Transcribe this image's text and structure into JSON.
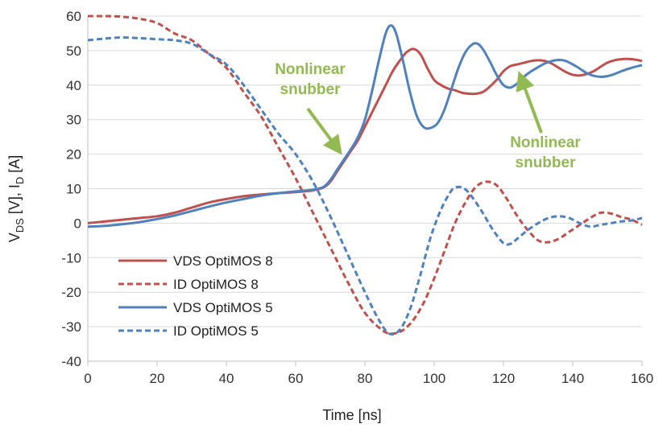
{
  "chart_data": {
    "type": "line",
    "xlabel": "Time [ns]",
    "ylabel": {
      "parts": [
        "V",
        "DS",
        " [V], I",
        "D",
        " [A]"
      ]
    },
    "xlim": [
      0,
      160
    ],
    "ylim": [
      -40,
      60
    ],
    "xticks": [
      0,
      20,
      40,
      60,
      80,
      100,
      120,
      140,
      160
    ],
    "yticks": [
      -40,
      -30,
      -20,
      -10,
      0,
      10,
      20,
      30,
      40,
      50,
      60
    ],
    "grid": "horizontal",
    "legend_position": "bottom-left",
    "colors": {
      "red": "#c0504d",
      "blue": "#4f81bd",
      "annotation": "#92b952"
    },
    "series": [
      {
        "name": "VDS OptiMOS 8",
        "color": "#c0504d",
        "dash": false,
        "points": [
          [
            0,
            0
          ],
          [
            5,
            0.5
          ],
          [
            10,
            1
          ],
          [
            15,
            1.5
          ],
          [
            20,
            2
          ],
          [
            25,
            3
          ],
          [
            30,
            4.5
          ],
          [
            35,
            6
          ],
          [
            40,
            7
          ],
          [
            45,
            7.8
          ],
          [
            50,
            8.3
          ],
          [
            55,
            8.7
          ],
          [
            60,
            9
          ],
          [
            65,
            9.5
          ],
          [
            68,
            10.3
          ],
          [
            70,
            12
          ],
          [
            72,
            15
          ],
          [
            74,
            18
          ],
          [
            76,
            21
          ],
          [
            78,
            24
          ],
          [
            80,
            28
          ],
          [
            82,
            32
          ],
          [
            84,
            36
          ],
          [
            86,
            40
          ],
          [
            88,
            44
          ],
          [
            90,
            47
          ],
          [
            92,
            49.5
          ],
          [
            94,
            50.5
          ],
          [
            96,
            49
          ],
          [
            98,
            45
          ],
          [
            100,
            41.5
          ],
          [
            102,
            40
          ],
          [
            104,
            39
          ],
          [
            106,
            38.5
          ],
          [
            108,
            37.8
          ],
          [
            110,
            37.5
          ],
          [
            112,
            37.5
          ],
          [
            114,
            38
          ],
          [
            116,
            39.5
          ],
          [
            118,
            41.5
          ],
          [
            120,
            44
          ],
          [
            122,
            45.5
          ],
          [
            124,
            46
          ],
          [
            126,
            46.5
          ],
          [
            128,
            47
          ],
          [
            130,
            47.2
          ],
          [
            132,
            47
          ],
          [
            134,
            46.2
          ],
          [
            136,
            45
          ],
          [
            138,
            43.8
          ],
          [
            140,
            43
          ],
          [
            142,
            42.8
          ],
          [
            144,
            43.2
          ],
          [
            146,
            44
          ],
          [
            148,
            45.3
          ],
          [
            150,
            46.5
          ],
          [
            152,
            47.2
          ],
          [
            154,
            47.5
          ],
          [
            156,
            47.6
          ],
          [
            158,
            47.4
          ],
          [
            160,
            47
          ]
        ]
      },
      {
        "name": "ID OptiMOS 8",
        "color": "#c0504d",
        "dash": true,
        "points": [
          [
            0,
            60
          ],
          [
            5,
            60
          ],
          [
            10,
            59.8
          ],
          [
            15,
            59.2
          ],
          [
            20,
            58
          ],
          [
            25,
            55
          ],
          [
            30,
            53
          ],
          [
            35,
            49
          ],
          [
            40,
            45
          ],
          [
            45,
            38
          ],
          [
            50,
            31
          ],
          [
            55,
            22
          ],
          [
            60,
            13
          ],
          [
            65,
            3
          ],
          [
            70,
            -7
          ],
          [
            75,
            -17
          ],
          [
            80,
            -26
          ],
          [
            85,
            -31
          ],
          [
            88,
            -32
          ],
          [
            91,
            -31
          ],
          [
            94,
            -28
          ],
          [
            97,
            -23
          ],
          [
            100,
            -16
          ],
          [
            103,
            -8
          ],
          [
            106,
            0
          ],
          [
            109,
            6
          ],
          [
            112,
            10.5
          ],
          [
            115,
            12
          ],
          [
            118,
            11
          ],
          [
            121,
            7
          ],
          [
            124,
            2
          ],
          [
            127,
            -2
          ],
          [
            130,
            -5
          ],
          [
            133,
            -5.5
          ],
          [
            136,
            -4.5
          ],
          [
            139,
            -2.5
          ],
          [
            142,
            -0.5
          ],
          [
            145,
            1.5
          ],
          [
            148,
            3
          ],
          [
            151,
            2.8
          ],
          [
            154,
            1.8
          ],
          [
            157,
            1
          ],
          [
            160,
            -0.5
          ]
        ]
      },
      {
        "name": "VDS OptiMOS 5",
        "color": "#4f81bd",
        "dash": false,
        "points": [
          [
            0,
            -1
          ],
          [
            5,
            -0.8
          ],
          [
            10,
            -0.3
          ],
          [
            15,
            0.3
          ],
          [
            20,
            1.2
          ],
          [
            25,
            2.2
          ],
          [
            30,
            3.5
          ],
          [
            35,
            4.8
          ],
          [
            40,
            6
          ],
          [
            45,
            7
          ],
          [
            50,
            8
          ],
          [
            55,
            8.7
          ],
          [
            60,
            9.2
          ],
          [
            65,
            9.7
          ],
          [
            68,
            10.5
          ],
          [
            70,
            12.5
          ],
          [
            72,
            15.5
          ],
          [
            74,
            18.5
          ],
          [
            76,
            21.5
          ],
          [
            78,
            25
          ],
          [
            80,
            30
          ],
          [
            82,
            38
          ],
          [
            84,
            47
          ],
          [
            86,
            55
          ],
          [
            87.5,
            57.3
          ],
          [
            89,
            55
          ],
          [
            91,
            47
          ],
          [
            93,
            38
          ],
          [
            95,
            31
          ],
          [
            97,
            27.8
          ],
          [
            99,
            27.6
          ],
          [
            101,
            29
          ],
          [
            103,
            33
          ],
          [
            105,
            39
          ],
          [
            107,
            45
          ],
          [
            109,
            49.5
          ],
          [
            111,
            51.8
          ],
          [
            112.5,
            52
          ],
          [
            114,
            50.5
          ],
          [
            116,
            47
          ],
          [
            118,
            43
          ],
          [
            120,
            40
          ],
          [
            122,
            39.3
          ],
          [
            124,
            40.5
          ],
          [
            126,
            42.5
          ],
          [
            128,
            44
          ],
          [
            130,
            45.2
          ],
          [
            132,
            46.3
          ],
          [
            134,
            47
          ],
          [
            136,
            47.3
          ],
          [
            138,
            47
          ],
          [
            140,
            46
          ],
          [
            142,
            44.8
          ],
          [
            144,
            43.5
          ],
          [
            146,
            42.7
          ],
          [
            148,
            42.4
          ],
          [
            150,
            42.6
          ],
          [
            152,
            43.2
          ],
          [
            154,
            44
          ],
          [
            156,
            44.7
          ],
          [
            158,
            45.3
          ],
          [
            160,
            45.8
          ]
        ]
      },
      {
        "name": "ID OptiMOS 5",
        "color": "#4f81bd",
        "dash": true,
        "points": [
          [
            0,
            53
          ],
          [
            5,
            53.5
          ],
          [
            10,
            53.8
          ],
          [
            15,
            53.6
          ],
          [
            20,
            53.3
          ],
          [
            25,
            53
          ],
          [
            30,
            52
          ],
          [
            35,
            49
          ],
          [
            40,
            46
          ],
          [
            45,
            40
          ],
          [
            50,
            33
          ],
          [
            55,
            26
          ],
          [
            60,
            20
          ],
          [
            65,
            12
          ],
          [
            70,
            2
          ],
          [
            75,
            -9
          ],
          [
            80,
            -20
          ],
          [
            84,
            -28
          ],
          [
            87,
            -32
          ],
          [
            90,
            -31
          ],
          [
            93,
            -25
          ],
          [
            96,
            -15
          ],
          [
            99,
            -4
          ],
          [
            102,
            4
          ],
          [
            105,
            9.5
          ],
          [
            107,
            10.5
          ],
          [
            109,
            9.8
          ],
          [
            111,
            7.5
          ],
          [
            114,
            3
          ],
          [
            117,
            -2
          ],
          [
            120,
            -5.8
          ],
          [
            122,
            -6
          ],
          [
            124,
            -4.5
          ],
          [
            127,
            -2
          ],
          [
            130,
            0
          ],
          [
            133,
            1.5
          ],
          [
            136,
            2
          ],
          [
            139,
            1.5
          ],
          [
            142,
            0
          ],
          [
            145,
            -1
          ],
          [
            148,
            -0.5
          ],
          [
            151,
            0
          ],
          [
            154,
            0.5
          ],
          [
            157,
            0.8
          ],
          [
            160,
            1.5
          ]
        ]
      }
    ],
    "annotations": [
      {
        "lines": [
          "Nonlinear",
          "snubber"
        ],
        "points_to": [
          74,
          19
        ]
      },
      {
        "lines": [
          "Nonlinear",
          "snubber"
        ],
        "points_to": [
          124,
          45
        ]
      }
    ]
  }
}
